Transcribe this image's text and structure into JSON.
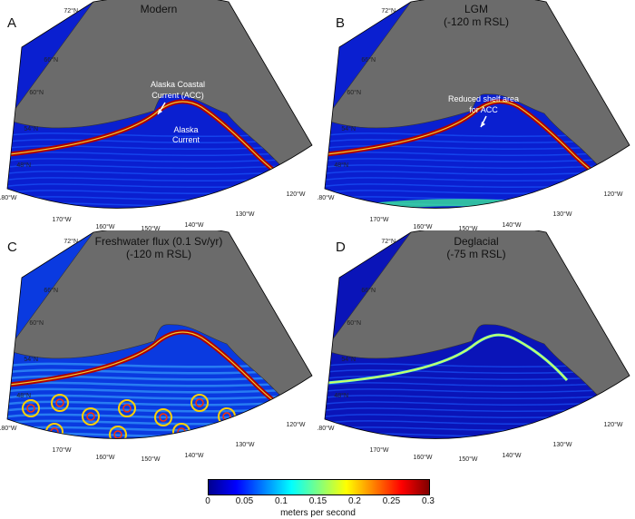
{
  "panels": [
    {
      "letter": "A",
      "title": "Modern",
      "subtitle": "",
      "annotations": [
        "Alaska Coastal",
        "Current (ACC)",
        "Alaska",
        "Current"
      ]
    },
    {
      "letter": "B",
      "title": "LGM",
      "subtitle": "(-120 m RSL)",
      "annotations": [
        "Reduced shelf area",
        "for ACC"
      ]
    },
    {
      "letter": "C",
      "title": "Freshwater flux (0.1 Sv/yr)",
      "subtitle": "(-120 m RSL)",
      "annotations": []
    },
    {
      "letter": "D",
      "title": "Deglacial",
      "subtitle": "(-75 m RSL)",
      "annotations": []
    }
  ],
  "lat_labels": [
    "72°N",
    "66°N",
    "60°N",
    "54°N",
    "48°N"
  ],
  "lon_labels": [
    "180°W",
    "170°W",
    "160°W",
    "150°W",
    "140°W",
    "130°W",
    "120°W"
  ],
  "colorbar": {
    "label": "meters per second",
    "ticks": [
      "0",
      "0.05",
      "0.1",
      "0.15",
      "0.2",
      "0.25",
      "0.3"
    ],
    "colors": [
      "#00008f",
      "#0000ff",
      "#0080ff",
      "#00ffff",
      "#80ff80",
      "#ffff00",
      "#ff8000",
      "#ff0000",
      "#800000"
    ]
  },
  "colors": {
    "land": "#6b6b6b",
    "ocean": "#0a1fd0",
    "current_strong": "#b00000",
    "current_mid": "#ffff40"
  }
}
